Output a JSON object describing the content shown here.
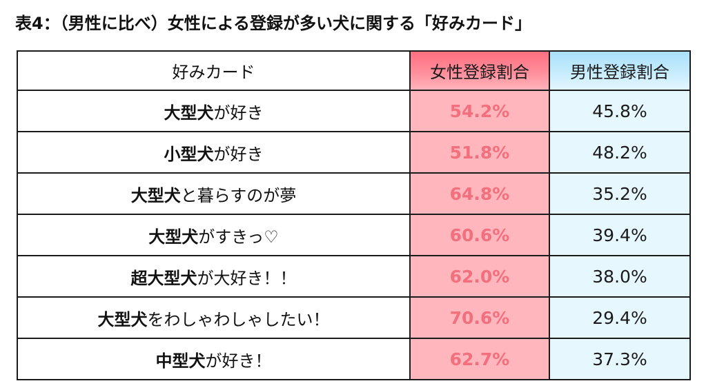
{
  "title": "表4：（男性に比べ）女性による登録が多い犬に関する「好みカード」",
  "chart_data": {
    "type": "table",
    "columns": [
      "好みカード",
      "女性登録割合",
      "男性登録割合"
    ],
    "rows": [
      {
        "label_em": "大型犬",
        "label_rest": "が好き",
        "female": "54.2%",
        "male": "45.8%"
      },
      {
        "label_em": "小型犬",
        "label_rest": "が好き",
        "female": "51.8%",
        "male": "48.2%"
      },
      {
        "label_em": "大型犬",
        "label_rest": "と暮らすのが夢",
        "female": "64.8%",
        "male": "35.2%"
      },
      {
        "label_em": "大型犬",
        "label_rest": "がすきっ♡",
        "female": "60.6%",
        "male": "39.4%"
      },
      {
        "label_em": "超大型犬",
        "label_rest": "が大好き！！",
        "female": "62.0%",
        "male": "38.0%"
      },
      {
        "label_em": "大型犬",
        "label_rest": "をわしゃわしゃしたい！",
        "female": "70.6%",
        "male": "29.4%"
      },
      {
        "label_em": "中型犬",
        "label_rest": "が好き！",
        "female": "62.7%",
        "male": "37.3%"
      }
    ]
  },
  "colors": {
    "female_header": "#ff8e9b",
    "female_cell": "#ffb6bd",
    "female_value_text": "#f2707e",
    "male_header": "#c7ecfd",
    "male_cell": "#e6f7fe"
  }
}
